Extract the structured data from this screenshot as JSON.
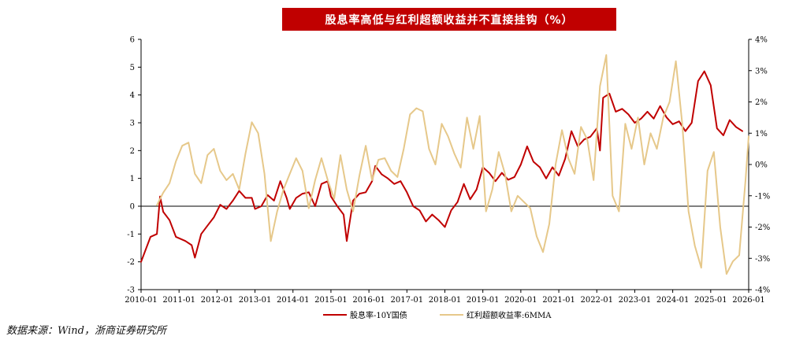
{
  "chart_data": {
    "type": "line",
    "title": "股息率高低与红利超额收益并不直接挂钩（%）",
    "xlabel": "",
    "ylabel": "",
    "x_ticks": [
      "2010-01",
      "2011-01",
      "2012-01",
      "2013-01",
      "2014-01",
      "2015-01",
      "2016-01",
      "2017-01",
      "2018-01",
      "2019-01",
      "2020-01",
      "2021-01",
      "2022-01",
      "2023-01",
      "2024-01",
      "2025-01",
      "2026-01"
    ],
    "y_left_ticks": [
      "-3",
      "-2",
      "-1",
      "0",
      "1",
      "2",
      "3",
      "4",
      "5",
      "6"
    ],
    "y_left_lim": [
      -3,
      6
    ],
    "y_right_ticks": [
      "-4%",
      "-3%",
      "-2%",
      "-1%",
      "0%",
      "1%",
      "2%",
      "3%",
      "4%"
    ],
    "y_right_lim": [
      -4,
      4
    ],
    "legend_position": "bottom-center",
    "colors": {
      "series1": "#c00000",
      "series2": "#e6c88a",
      "title_bg": "#c00000"
    },
    "series": [
      {
        "name": "股息率-10Y国债",
        "axis": "left",
        "points": [
          [
            "2010-01",
            -2.0
          ],
          [
            "2010-04",
            -1.1
          ],
          [
            "2010-06",
            -1.0
          ],
          [
            "2010-07",
            0.35
          ],
          [
            "2010-08",
            -0.2
          ],
          [
            "2010-10",
            -0.5
          ],
          [
            "2010-12",
            -1.1
          ],
          [
            "2011-03",
            -1.25
          ],
          [
            "2011-05",
            -1.4
          ],
          [
            "2011-06",
            -1.85
          ],
          [
            "2011-08",
            -1.0
          ],
          [
            "2011-10",
            -0.7
          ],
          [
            "2011-12",
            -0.4
          ],
          [
            "2012-02",
            0.05
          ],
          [
            "2012-04",
            -0.1
          ],
          [
            "2012-06",
            0.2
          ],
          [
            "2012-08",
            0.55
          ],
          [
            "2012-10",
            0.3
          ],
          [
            "2012-12",
            0.3
          ],
          [
            "2013-01",
            -0.1
          ],
          [
            "2013-03",
            0.0
          ],
          [
            "2013-05",
            0.4
          ],
          [
            "2013-07",
            0.2
          ],
          [
            "2013-09",
            0.9
          ],
          [
            "2013-11",
            0.3
          ],
          [
            "2013-12",
            -0.1
          ],
          [
            "2014-02",
            0.3
          ],
          [
            "2014-04",
            0.45
          ],
          [
            "2014-06",
            0.5
          ],
          [
            "2014-08",
            0.0
          ],
          [
            "2014-10",
            0.8
          ],
          [
            "2014-12",
            0.9
          ],
          [
            "2015-01",
            0.35
          ],
          [
            "2015-03",
            0.0
          ],
          [
            "2015-05",
            -0.3
          ],
          [
            "2015-06",
            -1.25
          ],
          [
            "2015-08",
            0.2
          ],
          [
            "2015-10",
            0.45
          ],
          [
            "2015-12",
            0.5
          ],
          [
            "2016-02",
            0.9
          ],
          [
            "2016-03",
            1.45
          ],
          [
            "2016-05",
            1.15
          ],
          [
            "2016-07",
            1.0
          ],
          [
            "2016-09",
            0.8
          ],
          [
            "2016-11",
            0.9
          ],
          [
            "2017-01",
            0.5
          ],
          [
            "2017-03",
            0.0
          ],
          [
            "2017-05",
            -0.15
          ],
          [
            "2017-07",
            -0.55
          ],
          [
            "2017-09",
            -0.3
          ],
          [
            "2017-11",
            -0.5
          ],
          [
            "2018-01",
            -0.75
          ],
          [
            "2018-03",
            -0.15
          ],
          [
            "2018-05",
            0.15
          ],
          [
            "2018-07",
            0.8
          ],
          [
            "2018-09",
            0.25
          ],
          [
            "2018-11",
            0.6
          ],
          [
            "2019-01",
            1.4
          ],
          [
            "2019-03",
            1.2
          ],
          [
            "2019-05",
            0.9
          ],
          [
            "2019-07",
            1.2
          ],
          [
            "2019-09",
            0.95
          ],
          [
            "2019-11",
            1.05
          ],
          [
            "2020-01",
            1.5
          ],
          [
            "2020-03",
            2.15
          ],
          [
            "2020-05",
            1.6
          ],
          [
            "2020-07",
            1.4
          ],
          [
            "2020-09",
            1.0
          ],
          [
            "2020-11",
            1.4
          ],
          [
            "2021-01",
            1.1
          ],
          [
            "2021-03",
            1.7
          ],
          [
            "2021-05",
            2.7
          ],
          [
            "2021-07",
            2.15
          ],
          [
            "2021-09",
            2.4
          ],
          [
            "2021-11",
            2.5
          ],
          [
            "2022-01",
            2.8
          ],
          [
            "2022-02",
            2.0
          ],
          [
            "2022-03",
            3.9
          ],
          [
            "2022-05",
            4.05
          ],
          [
            "2022-07",
            3.4
          ],
          [
            "2022-09",
            3.5
          ],
          [
            "2022-11",
            3.3
          ],
          [
            "2023-01",
            3.0
          ],
          [
            "2023-03",
            3.15
          ],
          [
            "2023-05",
            3.4
          ],
          [
            "2023-07",
            3.15
          ],
          [
            "2023-09",
            3.6
          ],
          [
            "2023-11",
            3.2
          ],
          [
            "2024-01",
            2.95
          ],
          [
            "2024-03",
            3.05
          ],
          [
            "2024-05",
            2.7
          ],
          [
            "2024-07",
            3.0
          ],
          [
            "2024-09",
            4.5
          ],
          [
            "2024-11",
            4.85
          ],
          [
            "2025-01",
            4.35
          ],
          [
            "2025-03",
            2.8
          ],
          [
            "2025-05",
            2.55
          ],
          [
            "2025-07",
            3.1
          ],
          [
            "2025-09",
            2.85
          ],
          [
            "2025-11",
            2.7
          ]
        ]
      },
      {
        "name": "红利超额收益率:6MMA",
        "axis": "right",
        "points": [
          [
            "2010-06",
            -1.3
          ],
          [
            "2010-08",
            -0.9
          ],
          [
            "2010-10",
            -0.6
          ],
          [
            "2010-12",
            0.1
          ],
          [
            "2011-02",
            0.6
          ],
          [
            "2011-04",
            0.7
          ],
          [
            "2011-06",
            -0.3
          ],
          [
            "2011-08",
            -0.6
          ],
          [
            "2011-10",
            0.3
          ],
          [
            "2011-12",
            0.5
          ],
          [
            "2012-02",
            -0.2
          ],
          [
            "2012-04",
            -0.5
          ],
          [
            "2012-06",
            -0.3
          ],
          [
            "2012-08",
            -0.8
          ],
          [
            "2012-10",
            0.35
          ],
          [
            "2012-12",
            1.35
          ],
          [
            "2013-02",
            1.0
          ],
          [
            "2013-04",
            -0.3
          ],
          [
            "2013-06",
            -2.45
          ],
          [
            "2013-08",
            -1.5
          ],
          [
            "2013-10",
            -0.8
          ],
          [
            "2013-12",
            -0.3
          ],
          [
            "2014-02",
            0.2
          ],
          [
            "2014-04",
            -0.2
          ],
          [
            "2014-06",
            -1.4
          ],
          [
            "2014-08",
            -0.5
          ],
          [
            "2014-10",
            0.2
          ],
          [
            "2014-12",
            -0.5
          ],
          [
            "2015-02",
            -1.1
          ],
          [
            "2015-04",
            0.3
          ],
          [
            "2015-06",
            -0.8
          ],
          [
            "2015-08",
            -1.5
          ],
          [
            "2015-10",
            -0.35
          ],
          [
            "2015-12",
            0.6
          ],
          [
            "2016-02",
            -0.5
          ],
          [
            "2016-04",
            0.15
          ],
          [
            "2016-06",
            0.2
          ],
          [
            "2016-08",
            -0.2
          ],
          [
            "2016-10",
            -0.4
          ],
          [
            "2016-12",
            0.5
          ],
          [
            "2017-02",
            1.6
          ],
          [
            "2017-04",
            1.8
          ],
          [
            "2017-06",
            1.7
          ],
          [
            "2017-08",
            0.5
          ],
          [
            "2017-10",
            0.0
          ],
          [
            "2017-12",
            1.3
          ],
          [
            "2018-02",
            0.9
          ],
          [
            "2018-04",
            0.35
          ],
          [
            "2018-06",
            -0.1
          ],
          [
            "2018-08",
            1.5
          ],
          [
            "2018-10",
            0.5
          ],
          [
            "2018-12",
            1.55
          ],
          [
            "2019-02",
            -1.5
          ],
          [
            "2019-04",
            -0.8
          ],
          [
            "2019-06",
            0.4
          ],
          [
            "2019-08",
            -0.3
          ],
          [
            "2019-10",
            -1.5
          ],
          [
            "2019-12",
            -1.0
          ],
          [
            "2020-02",
            -1.2
          ],
          [
            "2020-04",
            -1.4
          ],
          [
            "2020-06",
            -2.3
          ],
          [
            "2020-08",
            -2.8
          ],
          [
            "2020-10",
            -1.9
          ],
          [
            "2020-12",
            0.0
          ],
          [
            "2021-02",
            1.1
          ],
          [
            "2021-04",
            0.2
          ],
          [
            "2021-06",
            -0.3
          ],
          [
            "2021-08",
            1.2
          ],
          [
            "2021-10",
            0.8
          ],
          [
            "2021-12",
            -0.5
          ],
          [
            "2022-02",
            2.5
          ],
          [
            "2022-04",
            3.5
          ],
          [
            "2022-06",
            -1.0
          ],
          [
            "2022-08",
            -1.5
          ],
          [
            "2022-10",
            1.3
          ],
          [
            "2022-12",
            0.5
          ],
          [
            "2023-02",
            1.5
          ],
          [
            "2023-04",
            0.0
          ],
          [
            "2023-06",
            1.0
          ],
          [
            "2023-08",
            0.5
          ],
          [
            "2023-10",
            1.5
          ],
          [
            "2023-12",
            2.0
          ],
          [
            "2024-02",
            3.3
          ],
          [
            "2024-04",
            1.3
          ],
          [
            "2024-06",
            -1.5
          ],
          [
            "2024-08",
            -2.6
          ],
          [
            "2024-10",
            -3.3
          ],
          [
            "2024-12",
            -0.2
          ],
          [
            "2025-02",
            0.4
          ],
          [
            "2025-04",
            -2.0
          ],
          [
            "2025-06",
            -3.5
          ],
          [
            "2025-08",
            -3.1
          ],
          [
            "2025-10",
            -2.9
          ],
          [
            "2025-12",
            -0.5
          ],
          [
            "2026-01",
            0.9
          ]
        ]
      }
    ]
  },
  "source_text": "数据来源：Wind，浙商证券研究所"
}
